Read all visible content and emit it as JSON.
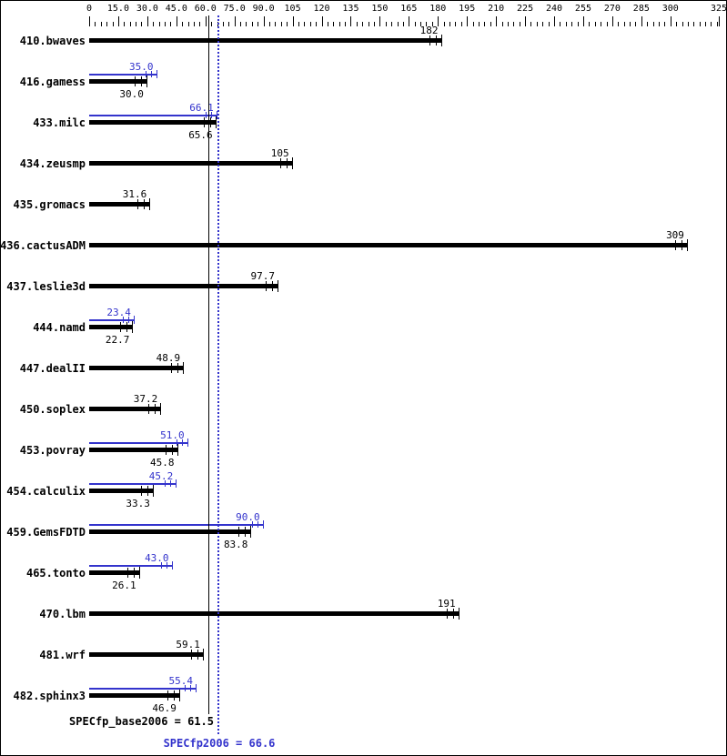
{
  "colors": {
    "base_bar": "#000000",
    "peak_bar": "#3333cc"
  },
  "chart_data": {
    "type": "bar",
    "orientation": "horizontal",
    "title": "",
    "xlim": [
      0,
      325
    ],
    "grid": false,
    "axis_ticks": [
      {
        "value": 0,
        "label": "0"
      },
      {
        "value": 15,
        "label": "15.0"
      },
      {
        "value": 30,
        "label": "30.0"
      },
      {
        "value": 45,
        "label": "45.0"
      },
      {
        "value": 60,
        "label": "60.0"
      },
      {
        "value": 75,
        "label": "75.0"
      },
      {
        "value": 90,
        "label": "90.0"
      },
      {
        "value": 105,
        "label": "105"
      },
      {
        "value": 120,
        "label": "120"
      },
      {
        "value": 135,
        "label": "135"
      },
      {
        "value": 150,
        "label": "150"
      },
      {
        "value": 165,
        "label": "165"
      },
      {
        "value": 180,
        "label": "180"
      },
      {
        "value": 195,
        "label": "195"
      },
      {
        "value": 210,
        "label": "210"
      },
      {
        "value": 225,
        "label": "225"
      },
      {
        "value": 240,
        "label": "240"
      },
      {
        "value": 255,
        "label": "255"
      },
      {
        "value": 270,
        "label": "270"
      },
      {
        "value": 285,
        "label": "285"
      },
      {
        "value": 300,
        "label": "300"
      },
      {
        "value": 325,
        "label": "325"
      }
    ],
    "benchmarks": [
      {
        "name": "410.bwaves",
        "base": 182,
        "base_label": "182",
        "peak": null,
        "peak_label": null
      },
      {
        "name": "416.gamess",
        "base": 30.0,
        "base_label": "30.0",
        "peak": 35.0,
        "peak_label": "35.0"
      },
      {
        "name": "433.milc",
        "base": 65.6,
        "base_label": "65.6",
        "peak": 66.1,
        "peak_label": "66.1"
      },
      {
        "name": "434.zeusmp",
        "base": 105,
        "base_label": "105",
        "peak": null,
        "peak_label": null
      },
      {
        "name": "435.gromacs",
        "base": 31.6,
        "base_label": "31.6",
        "peak": null,
        "peak_label": null
      },
      {
        "name": "436.cactusADM",
        "base": 309,
        "base_label": "309",
        "peak": null,
        "peak_label": null
      },
      {
        "name": "437.leslie3d",
        "base": 97.7,
        "base_label": "97.7",
        "peak": null,
        "peak_label": null
      },
      {
        "name": "444.namd",
        "base": 22.7,
        "base_label": "22.7",
        "peak": 23.4,
        "peak_label": "23.4"
      },
      {
        "name": "447.dealII",
        "base": 48.9,
        "base_label": "48.9",
        "peak": null,
        "peak_label": null
      },
      {
        "name": "450.soplex",
        "base": 37.2,
        "base_label": "37.2",
        "peak": null,
        "peak_label": null
      },
      {
        "name": "453.povray",
        "base": 45.8,
        "base_label": "45.8",
        "peak": 51.0,
        "peak_label": "51.0"
      },
      {
        "name": "454.calculix",
        "base": 33.3,
        "base_label": "33.3",
        "peak": 45.2,
        "peak_label": "45.2"
      },
      {
        "name": "459.GemsFDTD",
        "base": 83.8,
        "base_label": "83.8",
        "peak": 90.0,
        "peak_label": "90.0"
      },
      {
        "name": "465.tonto",
        "base": 26.1,
        "base_label": "26.1",
        "peak": 43.0,
        "peak_label": "43.0"
      },
      {
        "name": "470.lbm",
        "base": 191,
        "base_label": "191",
        "peak": null,
        "peak_label": null
      },
      {
        "name": "481.wrf",
        "base": 59.1,
        "base_label": "59.1",
        "peak": null,
        "peak_label": null
      },
      {
        "name": "482.sphinx3",
        "base": 46.9,
        "base_label": "46.9",
        "peak": 55.4,
        "peak_label": "55.4"
      }
    ],
    "reference_lines": [
      {
        "name": "SPECfp_base2006",
        "value": 61.5,
        "label": "SPECfp_base2006 = 61.5",
        "style": "solid",
        "color": "#000000"
      },
      {
        "name": "SPECfp2006",
        "value": 66.6,
        "label": "SPECfp2006 = 66.6",
        "style": "dotted",
        "color": "#3333cc"
      }
    ]
  }
}
